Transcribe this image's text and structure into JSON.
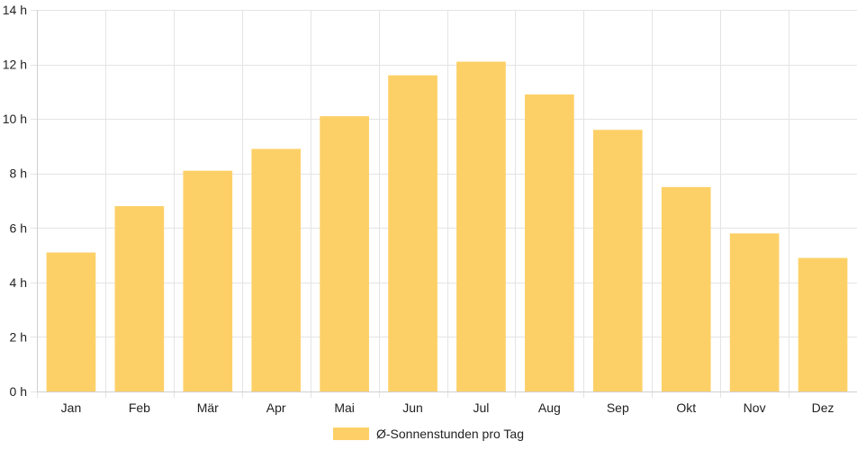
{
  "chart_data": {
    "type": "bar",
    "categories": [
      "Jan",
      "Feb",
      "Mär",
      "Apr",
      "Mai",
      "Jun",
      "Jul",
      "Aug",
      "Sep",
      "Okt",
      "Nov",
      "Dez"
    ],
    "series": [
      {
        "name": "Ø-Sonnenstunden pro Tag",
        "values": [
          5.1,
          6.8,
          8.1,
          8.9,
          10.1,
          11.6,
          12.1,
          10.9,
          9.6,
          7.5,
          5.8,
          4.9
        ],
        "color": "#fdd067"
      }
    ],
    "y_ticks": [
      "0 h",
      "2 h",
      "4 h",
      "6 h",
      "8 h",
      "10 h",
      "12 h",
      "14 h"
    ],
    "y_tick_values": [
      0,
      2,
      4,
      6,
      8,
      10,
      12,
      14
    ],
    "ylim": [
      0,
      14
    ],
    "grid": true,
    "legend_position": "bottom"
  }
}
